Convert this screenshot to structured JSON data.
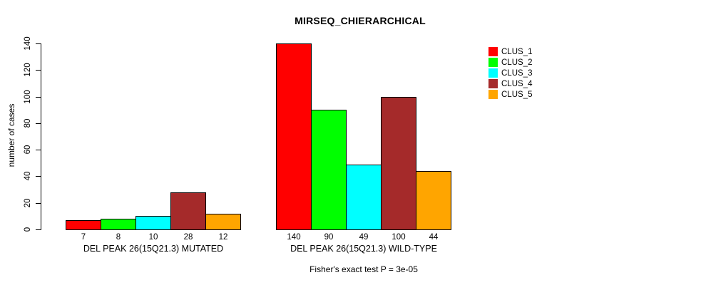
{
  "chart_data": {
    "type": "bar",
    "title": "MIRSEQ_CHIERARCHICAL",
    "ylabel": "number of cases",
    "xlabel": "",
    "ylim": [
      0,
      140
    ],
    "yticks": [
      0,
      20,
      40,
      60,
      80,
      100,
      120,
      140
    ],
    "grid": false,
    "legend_position": "right",
    "series": [
      {
        "name": "CLUS_1",
        "color": "#FF0000"
      },
      {
        "name": "CLUS_2",
        "color": "#00FF00"
      },
      {
        "name": "CLUS_3",
        "color": "#00FFFF"
      },
      {
        "name": "CLUS_4",
        "color": "#A52A2A"
      },
      {
        "name": "CLUS_5",
        "color": "#FFA500"
      }
    ],
    "groups": [
      {
        "label": "DEL PEAK 26(15Q21.3) MUTATED",
        "values": [
          7,
          8,
          10,
          28,
          12
        ],
        "bar_labels": [
          "7",
          "8",
          "10",
          "28",
          "12"
        ]
      },
      {
        "label": "DEL PEAK 26(15Q21.3) WILD-TYPE",
        "values": [
          140,
          90,
          49,
          100,
          44
        ],
        "bar_labels": [
          "140",
          "90",
          "49",
          "100",
          "44"
        ]
      }
    ],
    "annotation": "Fisher's exact test P = 3e-05"
  }
}
